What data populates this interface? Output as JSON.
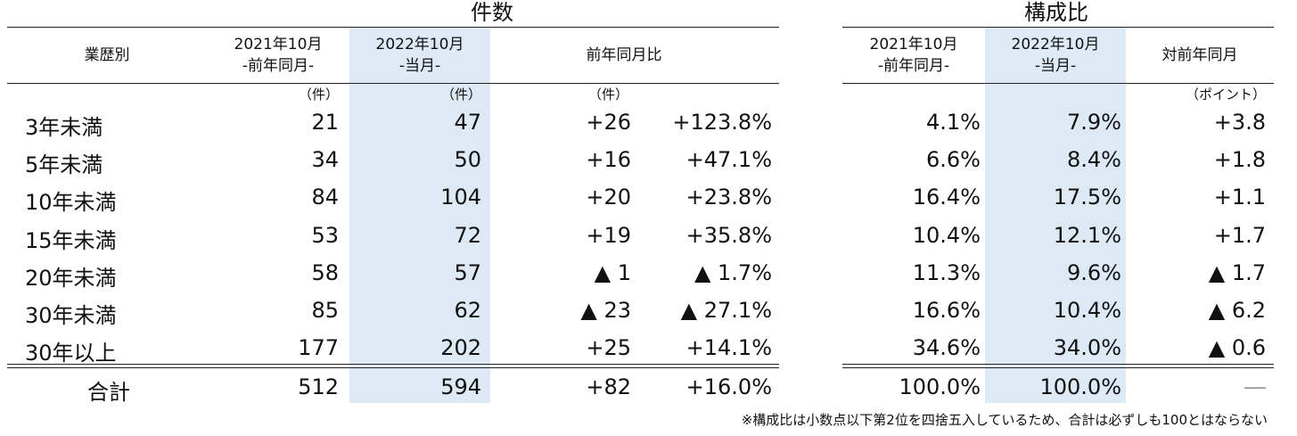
{
  "left": {
    "title": "件数",
    "headers": {
      "category": "業歴別",
      "prev_line1": "2021年10月",
      "prev_line2": "-前年同月-",
      "curr_line1": "2022年10月",
      "curr_line2": "-当月-",
      "yoy": "前年同月比"
    },
    "units": {
      "prev": "（件）",
      "curr": "（件）",
      "diff": "（件）"
    }
  },
  "right": {
    "title": "構成比",
    "headers": {
      "prev_line1": "2021年10月",
      "prev_line2": "-前年同月-",
      "curr_line1": "2022年10月",
      "curr_line2": "-当月-",
      "yoy": "対前年同月"
    },
    "units": {
      "pt": "（ポイント）"
    }
  },
  "rows": [
    {
      "label": "3年未満",
      "prev": "21",
      "curr": "47",
      "diff": "+26",
      "pct": "+123.8%",
      "share_prev": "4.1%",
      "share_curr": "7.9%",
      "share_diff": "+3.8"
    },
    {
      "label": "5年未満",
      "prev": "34",
      "curr": "50",
      "diff": "+16",
      "pct": "+47.1%",
      "share_prev": "6.6%",
      "share_curr": "8.4%",
      "share_diff": "+1.8"
    },
    {
      "label": "10年未満",
      "prev": "84",
      "curr": "104",
      "diff": "+20",
      "pct": "+23.8%",
      "share_prev": "16.4%",
      "share_curr": "17.5%",
      "share_diff": "+1.1"
    },
    {
      "label": "15年未満",
      "prev": "53",
      "curr": "72",
      "diff": "+19",
      "pct": "+35.8%",
      "share_prev": "10.4%",
      "share_curr": "12.1%",
      "share_diff": "+1.7"
    },
    {
      "label": "20年未満",
      "prev": "58",
      "curr": "57",
      "diff": "▲ 1",
      "pct": "▲ 1.7%",
      "share_prev": "11.3%",
      "share_curr": "9.6%",
      "share_diff": "▲ 1.7"
    },
    {
      "label": "30年未満",
      "prev": "85",
      "curr": "62",
      "diff": "▲ 23",
      "pct": "▲ 27.1%",
      "share_prev": "16.6%",
      "share_curr": "10.4%",
      "share_diff": "▲ 6.2"
    },
    {
      "label": "30年以上",
      "prev": "177",
      "curr": "202",
      "diff": "+25",
      "pct": "+14.1%",
      "share_prev": "34.6%",
      "share_curr": "34.0%",
      "share_diff": "▲ 0.6"
    }
  ],
  "total": {
    "label": "合計",
    "prev": "512",
    "curr": "594",
    "diff": "+82",
    "pct": "+16.0%",
    "share_prev": "100.0%",
    "share_curr": "100.0%",
    "share_diff": "―"
  },
  "note": "※構成比は小数点以下第2位を四捨五入しているため、合計は必ずしも100とはならない",
  "colors": {
    "highlight": "#dde9f5",
    "rule": "#222222"
  }
}
